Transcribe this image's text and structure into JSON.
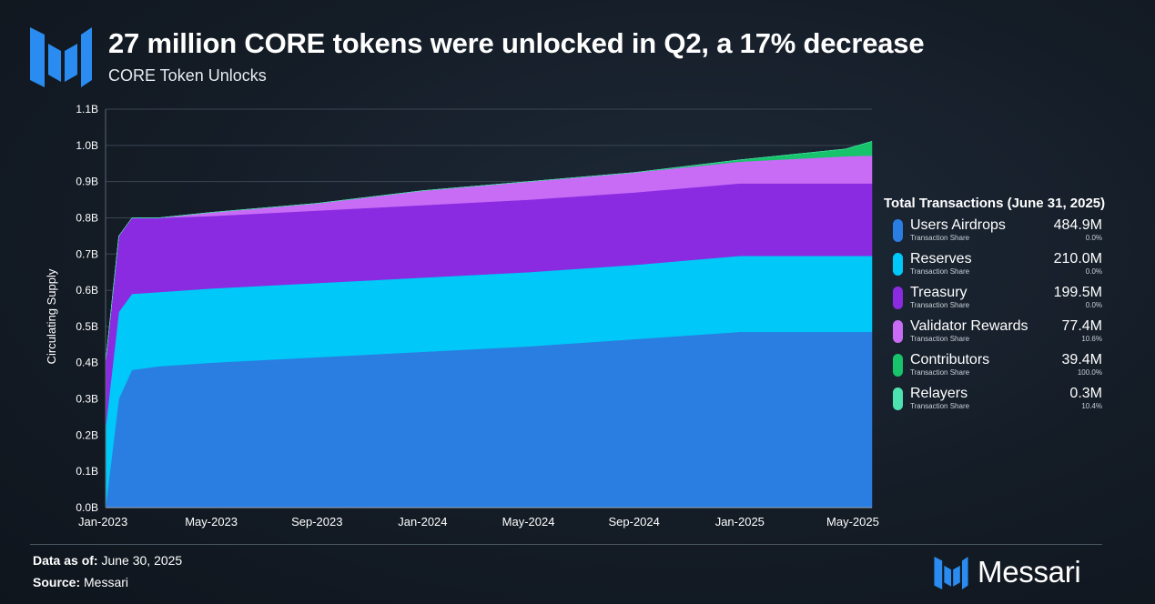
{
  "header": {
    "title": "27 million CORE tokens were unlocked in Q2, a 17% decrease",
    "subtitle": "CORE Token Unlocks"
  },
  "legend": {
    "title": "Total Transactions (June 31, 2025)",
    "share_label": "Transaction Share",
    "items": [
      {
        "name": "Users Airdrops",
        "value": "484.9M",
        "pct": "0.0%",
        "color": "#2a7de1"
      },
      {
        "name": "Reserves",
        "value": "210.0M",
        "pct": "0.0%",
        "color": "#00c8f8"
      },
      {
        "name": "Treasury",
        "value": "199.5M",
        "pct": "0.0%",
        "color": "#8a2be2"
      },
      {
        "name": "Validator Rewards",
        "value": "77.4M",
        "pct": "10.6%",
        "color": "#c86cf5"
      },
      {
        "name": "Contributors",
        "value": "39.4M",
        "pct": "100.0%",
        "color": "#17c46b"
      },
      {
        "name": "Relayers",
        "value": "0.3M",
        "pct": "10.4%",
        "color": "#4de3b0"
      }
    ]
  },
  "footer": {
    "data_label": "Data as of:",
    "data_value": "June 30, 2025",
    "source_label": "Source:",
    "source_value": "Messari",
    "brand": "Messari"
  },
  "chart_data": {
    "type": "area",
    "stacked": true,
    "title": "CORE Token Unlocks",
    "xlabel": "",
    "ylabel": "Circulating Supply",
    "ylim": [
      0,
      1.1
    ],
    "y_unit": "B",
    "y_ticks": [
      "0.0B",
      "0.1B",
      "0.2B",
      "0.3B",
      "0.4B",
      "0.5B",
      "0.6B",
      "0.7B",
      "0.8B",
      "0.9B",
      "1.0B",
      "1.1B"
    ],
    "x_ticks": [
      "Jan-2023",
      "May-2023",
      "Sep-2023",
      "Jan-2024",
      "May-2024",
      "Sep-2024",
      "Jan-2025",
      "May-2025"
    ],
    "x": [
      0,
      0.5,
      1,
      2,
      4,
      8,
      12,
      16,
      20,
      24,
      28,
      29
    ],
    "series": [
      {
        "name": "Users Airdrops",
        "color": "#2a7de1",
        "values": [
          0.0,
          0.3,
          0.38,
          0.39,
          0.4,
          0.415,
          0.43,
          0.445,
          0.465,
          0.485,
          0.485,
          0.485
        ]
      },
      {
        "name": "Reserves",
        "color": "#00c8f8",
        "values": [
          0.22,
          0.24,
          0.21,
          0.205,
          0.205,
          0.205,
          0.205,
          0.205,
          0.205,
          0.21,
          0.21,
          0.21
        ]
      },
      {
        "name": "Treasury",
        "color": "#8a2be2",
        "values": [
          0.18,
          0.21,
          0.21,
          0.205,
          0.2,
          0.2,
          0.2,
          0.2,
          0.2,
          0.2,
          0.2,
          0.2
        ]
      },
      {
        "name": "Validator Rewards",
        "color": "#c86cf5",
        "values": [
          0.0,
          0.0,
          0.0,
          0.0,
          0.01,
          0.02,
          0.04,
          0.05,
          0.055,
          0.06,
          0.075,
          0.077
        ]
      },
      {
        "name": "Contributors",
        "color": "#17c46b",
        "values": [
          0.0,
          0.0,
          0.0,
          0.0,
          0.0,
          0.0,
          0.0,
          0.0,
          0.0,
          0.005,
          0.02,
          0.039
        ]
      },
      {
        "name": "Relayers",
        "color": "#4de3b0",
        "values": [
          0.0,
          0.0,
          0.0,
          0.0,
          0.0,
          0.0,
          0.0,
          0.0,
          0.0,
          0.0,
          0.0,
          0.0003
        ]
      }
    ]
  }
}
